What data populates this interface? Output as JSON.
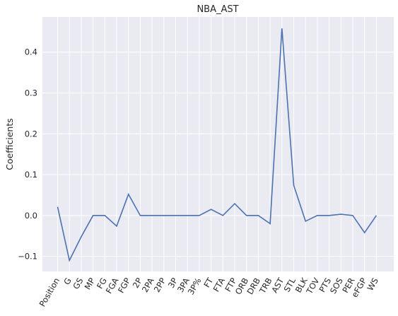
{
  "chart_data": {
    "type": "line",
    "title": "NBA_AST",
    "xlabel": "",
    "ylabel": "Coefficients",
    "categories": [
      "Position",
      "G",
      "GS",
      "MP",
      "FG",
      "FGA",
      "FGP",
      "2P",
      "2PA",
      "2PP",
      "3P",
      "3PA",
      "3P%",
      "FT",
      "FTA",
      "FTP",
      "ORB",
      "DRB",
      "TRB",
      "AST",
      "STL",
      "BLK",
      "TOV",
      "PTS",
      "SOS",
      "PER",
      "eFGP",
      "WS"
    ],
    "series": [
      {
        "values": [
          0.021,
          -0.11,
          -0.052,
          0.0,
          0.0,
          -0.026,
          0.052,
          0.0,
          0.0,
          0.0,
          0.0,
          0.0,
          0.0,
          0.015,
          0.0,
          0.029,
          0.0,
          0.0,
          -0.02,
          0.458,
          0.074,
          -0.014,
          0.0,
          0.0,
          0.003,
          0.0,
          -0.042,
          0.0
        ]
      }
    ],
    "yticks": [
      -0.1,
      0.0,
      0.1,
      0.2,
      0.3,
      0.4
    ],
    "ytick_labels": [
      "−0.1",
      "0.0",
      "0.1",
      "0.2",
      "0.3",
      "0.4"
    ],
    "ylim": [
      -0.137,
      0.486
    ],
    "grid": true,
    "line_color": "#4c72b0",
    "background_color": "#eaeaf2"
  }
}
